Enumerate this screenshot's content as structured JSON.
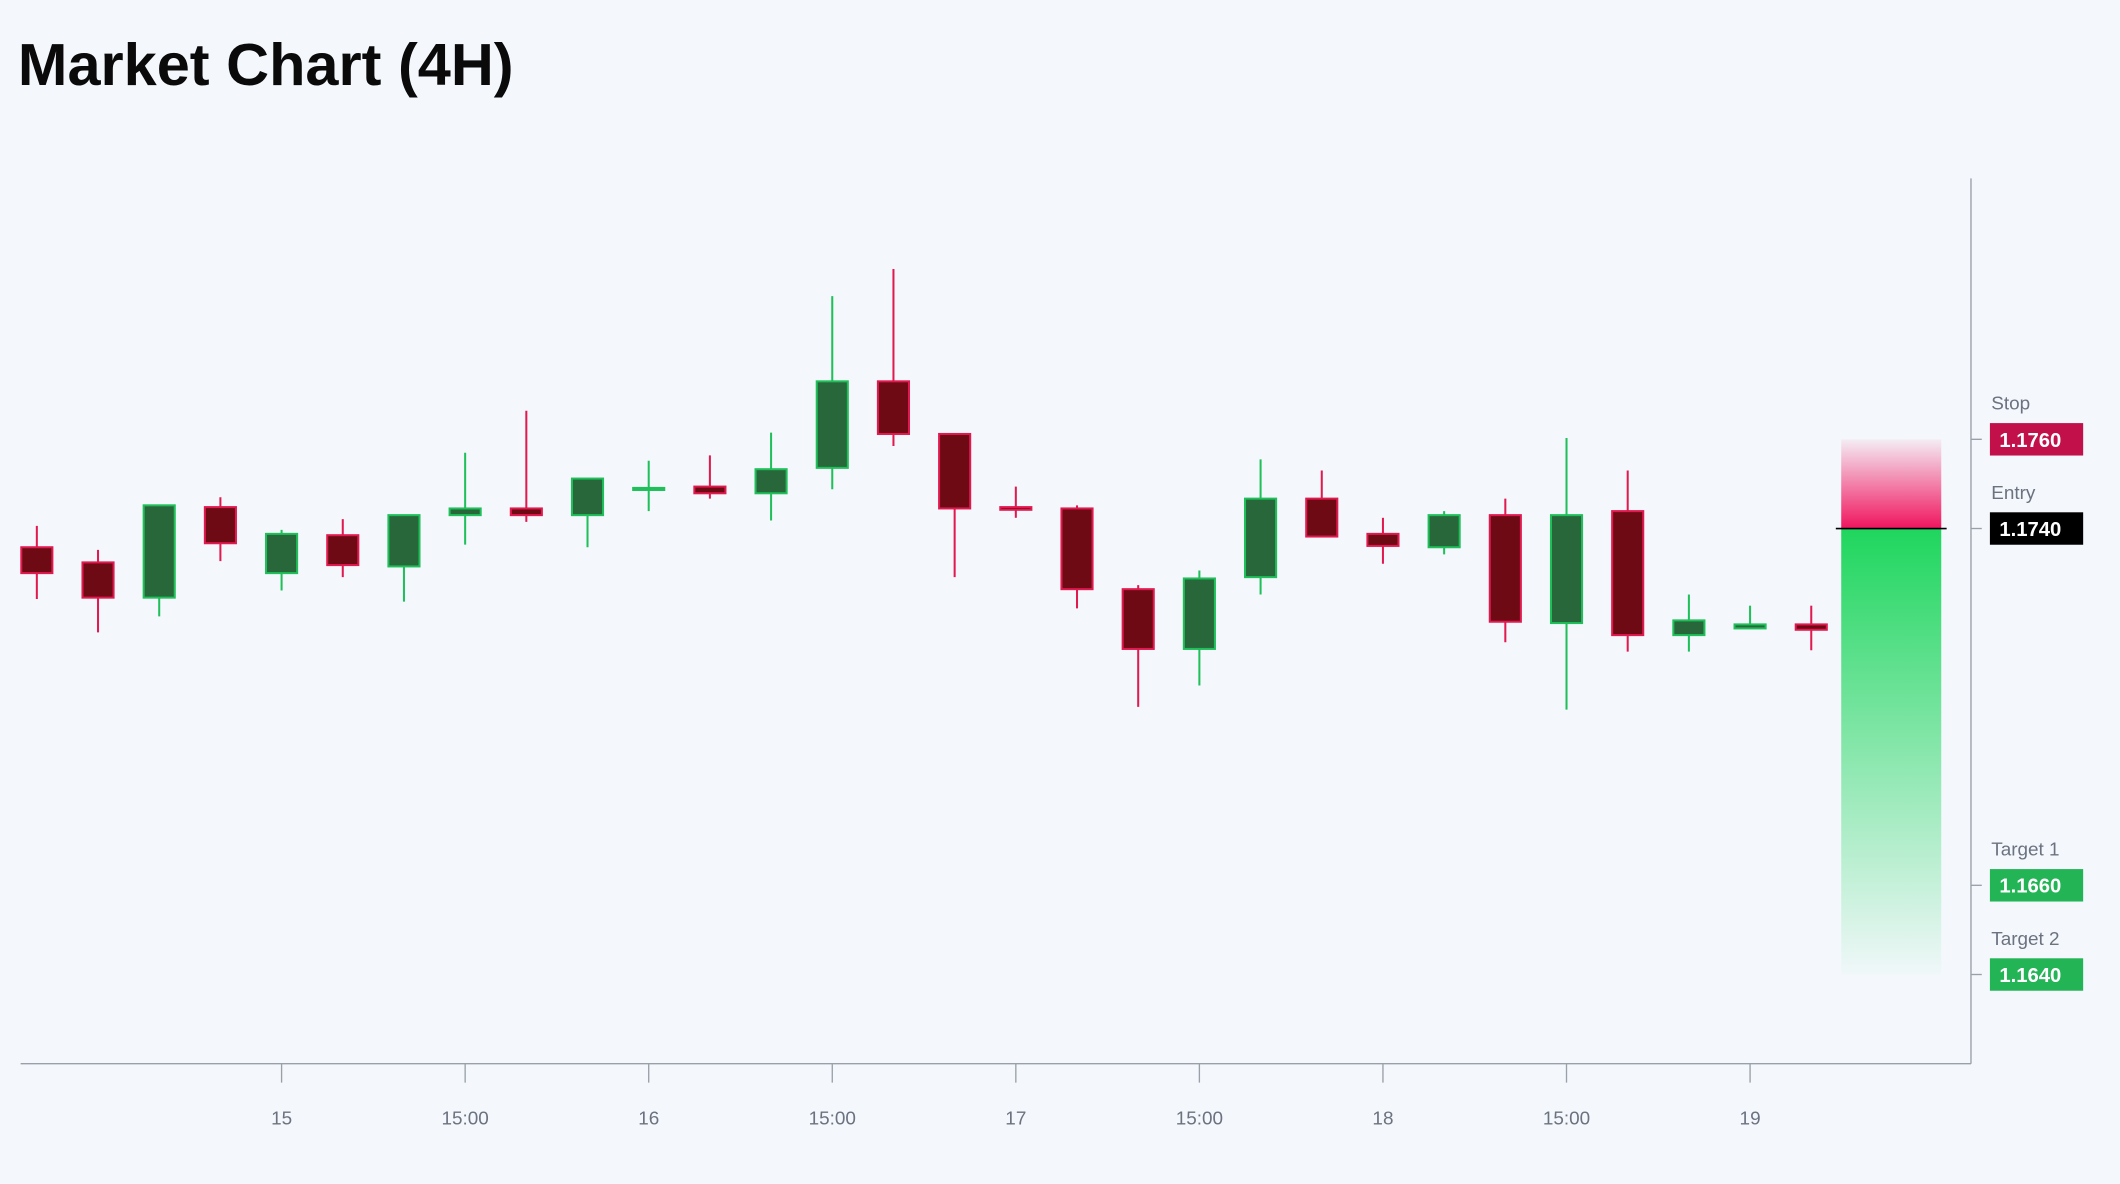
{
  "chart_data": {
    "type": "candlestick",
    "title": "Market Chart (4H)",
    "categories": [
      null,
      null,
      null,
      null,
      null,
      null,
      null,
      null,
      null,
      null,
      null,
      null,
      null,
      null,
      null,
      null,
      null,
      null,
      null,
      null,
      null,
      null,
      null,
      null,
      null,
      null,
      null,
      null,
      null,
      null
    ],
    "open": [
      1.17358,
      1.17324,
      1.17245,
      1.17448,
      1.173,
      1.17385,
      1.17315,
      1.1743,
      1.17445,
      1.1743,
      1.17488,
      1.17494,
      1.17479,
      1.17536,
      1.1773,
      1.17612,
      1.17448,
      1.17445,
      1.17264,
      1.1713,
      1.17291,
      1.17467,
      1.17388,
      1.17358,
      1.1743,
      1.17188,
      1.17439,
      1.17161,
      1.17176,
      1.17185
    ],
    "high": [
      1.17406,
      1.17352,
      1.17452,
      1.1747,
      1.17397,
      1.17421,
      1.1743,
      1.1757,
      1.17664,
      1.17512,
      1.17552,
      1.17564,
      1.17615,
      1.17921,
      1.17982,
      1.17612,
      1.17494,
      1.17452,
      1.17273,
      1.17306,
      1.17555,
      1.1753,
      1.17424,
      1.17439,
      1.17467,
      1.17603,
      1.1753,
      1.17252,
      1.17227,
      1.17227
    ],
    "low": [
      1.17242,
      1.17167,
      1.17203,
      1.17327,
      1.17261,
      1.17291,
      1.17236,
      1.17364,
      1.17415,
      1.17358,
      1.17439,
      1.17467,
      1.17418,
      1.17488,
      1.17585,
      1.17291,
      1.17424,
      1.17221,
      1.17,
      1.17048,
      1.17252,
      1.17382,
      1.17321,
      1.17342,
      1.17145,
      1.16994,
      1.17124,
      1.17124,
      1.17176,
      1.17127
    ],
    "close": [
      1.173,
      1.17245,
      1.17452,
      1.17367,
      1.17388,
      1.17318,
      1.1743,
      1.17445,
      1.1743,
      1.17512,
      1.17491,
      1.17479,
      1.17533,
      1.1773,
      1.17612,
      1.17445,
      1.17442,
      1.17264,
      1.1713,
      1.17288,
      1.17467,
      1.17382,
      1.17361,
      1.1743,
      1.17191,
      1.1743,
      1.17161,
      1.17194,
      1.17185,
      1.17173
    ],
    "xticks": [
      {
        "value": 4,
        "label": "15"
      },
      {
        "value": 7,
        "label": "15:00"
      },
      {
        "value": 10,
        "label": "16"
      },
      {
        "value": 13,
        "label": "15:00"
      },
      {
        "value": 16,
        "label": "17"
      },
      {
        "value": 19,
        "label": "15:00"
      },
      {
        "value": 22,
        "label": "18"
      },
      {
        "value": 25,
        "label": "15:00"
      },
      {
        "value": 28,
        "label": "19"
      }
    ],
    "ylim": [
      1.162,
      1.18185
    ],
    "levels": [
      {
        "name": "Stop",
        "value": 1.176,
        "label": "1.1760",
        "color": "#c2114a"
      },
      {
        "name": "Entry",
        "value": 1.174,
        "label": "1.1740",
        "color": "#000000"
      },
      {
        "name": "Target 1",
        "value": 1.166,
        "label": "1.1660",
        "color": "#22b455"
      },
      {
        "name": "Target 2",
        "value": 1.164,
        "label": "1.1640",
        "color": "#22b455"
      }
    ],
    "up_color": "#27673a",
    "up_edge": "#1fbf5a",
    "down_color": "#6e0a14",
    "down_edge": "#e0194f"
  }
}
